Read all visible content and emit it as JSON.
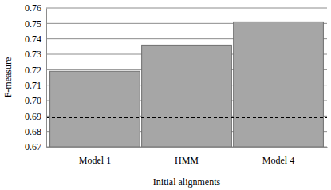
{
  "chart_data": {
    "type": "bar",
    "categories": [
      "Model 1",
      "HMM",
      "Model 4"
    ],
    "values": [
      0.719,
      0.736,
      0.751
    ],
    "color": "#a6a6a6",
    "baseline": 0.689,
    "x_label": "Initial alignments",
    "y_label": "F-measure",
    "ylim": [
      0.67,
      0.76
    ],
    "yticks": [
      0.67,
      0.68,
      0.69,
      {
        "value": 0.7,
        "label": "0.70"
      },
      0.71,
      0.72,
      0.73,
      0.74,
      0.75,
      0.76
    ],
    "grid": true
  }
}
